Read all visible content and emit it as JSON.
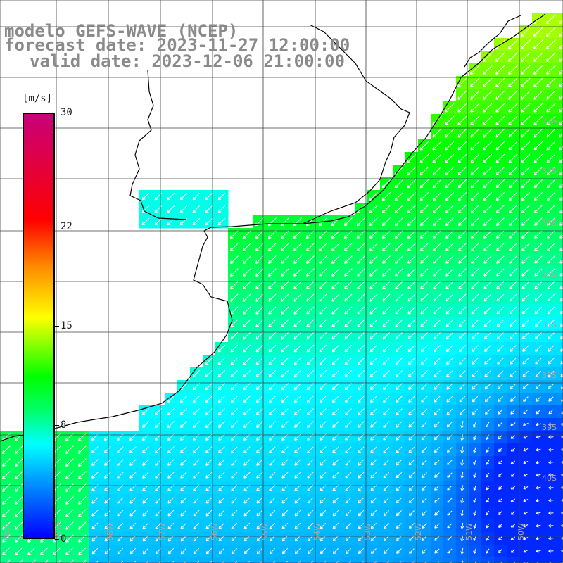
{
  "title": {
    "line1": "modelo GEFS-WAVE (NCEP)",
    "line2": "forecast date: 2023-11-27 12:00:00",
    "line3": "valid date: 2023-12-06 21:00:00"
  },
  "colorbar": {
    "unit": "[m/s]",
    "ticks": [
      "30",
      "22",
      "15",
      "8",
      "0"
    ],
    "tick_values": [
      30,
      22,
      15,
      8,
      0
    ],
    "min": 0,
    "max": 30,
    "colors": [
      "#0000ff",
      "#00a0ff",
      "#00ffff",
      "#00ff6a",
      "#00ff00",
      "#ffff00",
      "#ff8a00",
      "#ff0000",
      "#c8007a"
    ]
  },
  "grid": {
    "lat_labels": [
      "33S",
      "34S",
      "35S",
      "36S",
      "37S",
      "38S",
      "39S",
      "40S"
    ],
    "lon_labels": [
      "60W",
      "59W",
      "58W",
      "57W",
      "56W",
      "55W",
      "54W",
      "53W",
      "52W",
      "51W",
      "50W"
    ]
  },
  "colors": {
    "land": "#ffffff",
    "coast": "#000000",
    "grid": "#404040",
    "label": "#a0a0a0",
    "arrow": "#ffffff"
  }
}
